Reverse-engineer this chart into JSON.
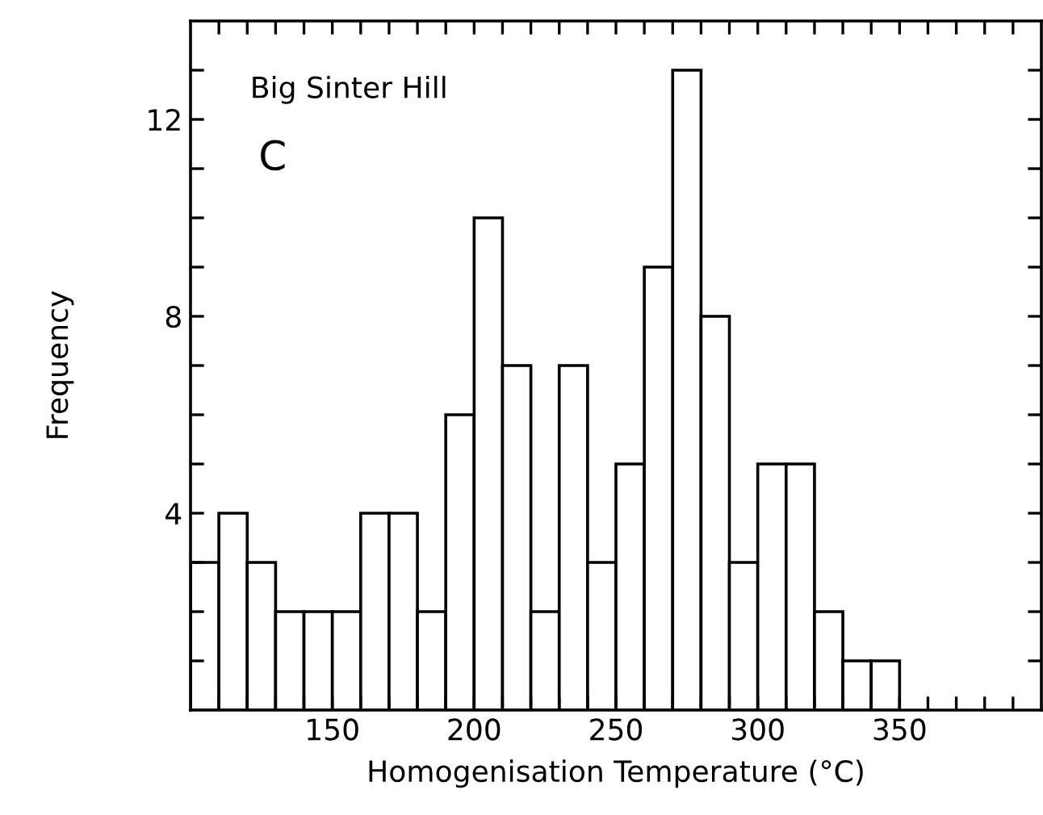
{
  "chart_data": {
    "type": "histogram",
    "xlabel": "Homogenisation Temperature (°C)",
    "ylabel": "Frequency",
    "annotations": [
      "Big Sinter Hill",
      "C"
    ],
    "bins": [
      100,
      110,
      120,
      130,
      140,
      150,
      160,
      170,
      180,
      190,
      200,
      210,
      220,
      230,
      240,
      250,
      260,
      270,
      280,
      290,
      300,
      310,
      320,
      330,
      340,
      350
    ],
    "values": [
      3,
      4,
      3,
      2,
      2,
      2,
      4,
      4,
      2,
      6,
      10,
      7,
      2,
      7,
      3,
      5,
      9,
      13,
      8,
      3,
      5,
      5,
      2,
      1,
      1
    ],
    "color": "#ffffff",
    "xlim": [
      100,
      400
    ],
    "ylim": [
      0,
      14
    ],
    "xticks": [
      {
        "value": 110,
        "label": null
      },
      {
        "value": 120,
        "label": null
      },
      {
        "value": 130,
        "label": null
      },
      {
        "value": 140,
        "label": null
      },
      150,
      {
        "value": 160,
        "label": null
      },
      {
        "value": 170,
        "label": null
      },
      {
        "value": 180,
        "label": null
      },
      {
        "value": 190,
        "label": null
      },
      200,
      {
        "value": 210,
        "label": null
      },
      {
        "value": 220,
        "label": null
      },
      {
        "value": 230,
        "label": null
      },
      {
        "value": 240,
        "label": null
      },
      250,
      {
        "value": 260,
        "label": null
      },
      {
        "value": 270,
        "label": null
      },
      {
        "value": 280,
        "label": null
      },
      {
        "value": 290,
        "label": null
      },
      300,
      {
        "value": 310,
        "label": null
      },
      {
        "value": 320,
        "label": null
      },
      {
        "value": 330,
        "label": null
      },
      {
        "value": 340,
        "label": null
      },
      350,
      {
        "value": 360,
        "label": null
      },
      {
        "value": 370,
        "label": null
      },
      {
        "value": 380,
        "label": null
      },
      {
        "value": 390,
        "label": null
      }
    ],
    "yticks": [
      {
        "value": 1,
        "label": null
      },
      {
        "value": 2,
        "label": null
      },
      {
        "value": 3,
        "label": null
      },
      4,
      {
        "value": 5,
        "label": null
      },
      {
        "value": 6,
        "label": null
      },
      {
        "value": 7,
        "label": null
      },
      8,
      {
        "value": 9,
        "label": null
      },
      {
        "value": 10,
        "label": null
      },
      {
        "value": 11,
        "label": null
      },
      12,
      {
        "value": 13,
        "label": null
      }
    ],
    "grid": false,
    "legend": false
  }
}
